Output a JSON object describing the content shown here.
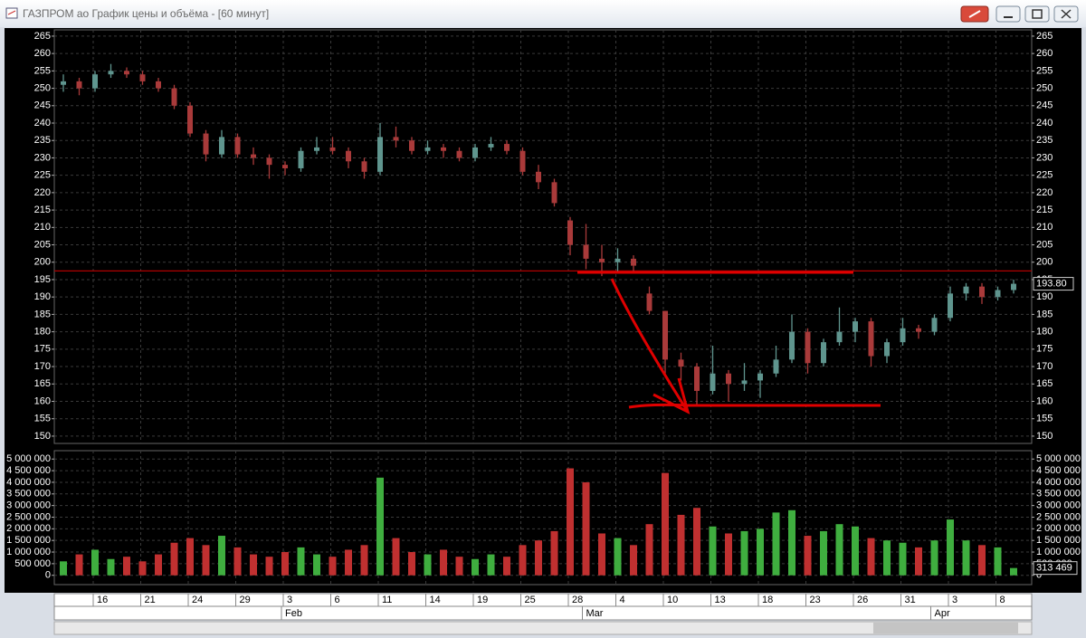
{
  "window": {
    "title": "ГАЗПРОМ ао График цены и объёма - [60 минут]"
  },
  "chart_data": [
    {
      "type": "candlestick",
      "categories": [
        null,
        null,
        "16",
        null,
        null,
        "21",
        null,
        null,
        "24",
        null,
        null,
        "29",
        null,
        null,
        "3",
        null,
        null,
        "6",
        null,
        null,
        "11",
        null,
        null,
        "14",
        null,
        null,
        "19",
        null,
        null,
        "25",
        null,
        null,
        "28",
        null,
        null,
        "4",
        null,
        null,
        "10",
        null,
        null,
        "13",
        null,
        null,
        "18",
        null,
        null,
        "23",
        null,
        null,
        "26",
        null,
        null,
        "31",
        null,
        null,
        "3",
        null,
        null,
        "8",
        null
      ],
      "months": [
        null,
        null,
        null,
        null,
        null,
        null,
        null,
        null,
        null,
        null,
        null,
        null,
        null,
        null,
        "Feb",
        null,
        null,
        null,
        null,
        null,
        null,
        null,
        null,
        null,
        null,
        null,
        null,
        null,
        null,
        null,
        null,
        null,
        null,
        "Mar",
        null,
        null,
        null,
        null,
        null,
        null,
        null,
        null,
        null,
        null,
        null,
        null,
        null,
        null,
        null,
        null,
        null,
        null,
        null,
        null,
        null,
        "Apr",
        null,
        null,
        null,
        null,
        null
      ],
      "open": [
        251,
        252,
        250,
        254,
        255,
        254,
        252,
        250,
        245,
        237,
        231,
        236,
        231,
        230,
        228,
        227,
        232,
        233,
        232,
        229,
        226,
        236,
        235,
        232,
        233,
        232,
        230,
        233,
        234,
        232,
        226,
        223,
        212,
        205,
        201,
        200,
        201,
        191,
        186,
        172,
        170,
        163,
        168,
        165,
        166,
        168,
        172,
        180,
        171,
        177,
        180,
        183,
        173,
        177,
        181,
        180,
        184,
        191,
        193,
        190,
        192
      ],
      "high": [
        254,
        253,
        255,
        257,
        256,
        255,
        253,
        251,
        246,
        238,
        238,
        237,
        233,
        231,
        229,
        233,
        236,
        236,
        233,
        230,
        240,
        239,
        236,
        235,
        234,
        233,
        234,
        236,
        235,
        233,
        228,
        224,
        213,
        211,
        205,
        204,
        202,
        193,
        186,
        174,
        171,
        176,
        169,
        171,
        169,
        176,
        185,
        181,
        178,
        187,
        184,
        184,
        178,
        184,
        182,
        185,
        193,
        194,
        194,
        193,
        195
      ],
      "low": [
        249,
        248,
        249,
        253,
        253,
        251,
        249,
        244,
        236,
        229,
        230,
        230,
        228,
        224,
        225,
        226,
        231,
        231,
        227,
        224,
        225,
        233,
        231,
        231,
        230,
        229,
        229,
        232,
        231,
        225,
        221,
        216,
        202,
        198,
        196,
        197,
        197,
        185,
        168,
        166,
        159,
        162,
        160,
        163,
        161,
        167,
        171,
        168,
        170,
        176,
        177,
        170,
        171,
        176,
        178,
        179,
        183,
        189,
        188,
        189,
        191
      ],
      "close": [
        252,
        250,
        254,
        255,
        254,
        252,
        250,
        245,
        237,
        231,
        236,
        231,
        230,
        228,
        227,
        232,
        233,
        232,
        229,
        226,
        236,
        235,
        232,
        233,
        232,
        230,
        233,
        234,
        232,
        226,
        223,
        217,
        205,
        201,
        200,
        201,
        199,
        186,
        172,
        170,
        163,
        168,
        165,
        166,
        168,
        172,
        180,
        171,
        177,
        180,
        183,
        173,
        177,
        181,
        180,
        184,
        191,
        193,
        190,
        192,
        193.8
      ],
      "close_label": "193.80",
      "up_color": "#5f958e",
      "down_color": "#a93a3a",
      "hline": 197.5,
      "hline_color": "#b00000",
      "ylim": [
        147.9,
        266.8
      ],
      "yticks": [
        150,
        155,
        160,
        165,
        170,
        175,
        180,
        185,
        190,
        195,
        200,
        205,
        210,
        215,
        220,
        225,
        230,
        235,
        240,
        245,
        250,
        255,
        260,
        265
      ],
      "grid": true
    },
    {
      "type": "bar",
      "values": [
        600000,
        900000,
        1100000,
        700000,
        800000,
        600000,
        900000,
        1400000,
        1600000,
        1300000,
        1700000,
        1200000,
        900000,
        800000,
        1000000,
        1200000,
        900000,
        800000,
        1100000,
        1300000,
        4200000,
        1600000,
        1000000,
        900000,
        1100000,
        800000,
        700000,
        900000,
        800000,
        1300000,
        1500000,
        1900000,
        4600000,
        4000000,
        1800000,
        1600000,
        1300000,
        2200000,
        4400000,
        2600000,
        2900000,
        2100000,
        1800000,
        1900000,
        2000000,
        2700000,
        2800000,
        1700000,
        1900000,
        2200000,
        2100000,
        1600000,
        1500000,
        1400000,
        1200000,
        1500000,
        2400000,
        1500000,
        1300000,
        1200000,
        313469
      ],
      "last_label": "313 469",
      "up_color": "#3fae3f",
      "down_color": "#c03030",
      "ylim": [
        -400000,
        5360000
      ],
      "yticks": [
        0,
        {
          "value": 500000,
          "label": "500 000"
        },
        {
          "value": 1000000,
          "label": "1 000 000"
        },
        {
          "value": 1500000,
          "label": "1 500 000"
        },
        {
          "value": 2000000,
          "label": "2 000 000"
        },
        {
          "value": 2500000,
          "label": "2 500 000"
        },
        {
          "value": 3000000,
          "label": "3 000 000"
        },
        {
          "value": 3500000,
          "label": "3 500 000"
        },
        {
          "value": 4000000,
          "label": "4 000 000"
        },
        {
          "value": 4500000,
          "label": "4 500 000"
        },
        {
          "value": 5000000,
          "label": "5 000 000"
        }
      ],
      "grid": true
    }
  ]
}
